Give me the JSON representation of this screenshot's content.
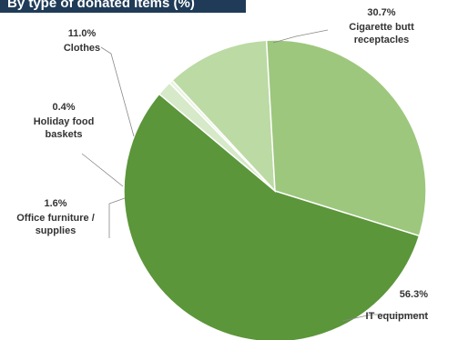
{
  "chart_data": {
    "type": "pie",
    "title": "By type of donated items (%)",
    "slices": [
      {
        "label": "IT equipment",
        "value": 56.3,
        "value_label": "56.3%",
        "color": "#5b963a"
      },
      {
        "label": "Office furniture / supplies",
        "value": 1.6,
        "value_label": "1.6%",
        "color": "#d6e9c8"
      },
      {
        "label": "Holiday food baskets",
        "value": 0.4,
        "value_label": "0.4%",
        "color": "#eaf4e1"
      },
      {
        "label": "Clothes",
        "value": 11.0,
        "value_label": "11.0%",
        "color": "#bcdaa4"
      },
      {
        "label": "Cigarette butt receptacles",
        "value": 30.7,
        "value_label": "30.7%",
        "color": "#9dc77d"
      }
    ],
    "legend": "none"
  }
}
